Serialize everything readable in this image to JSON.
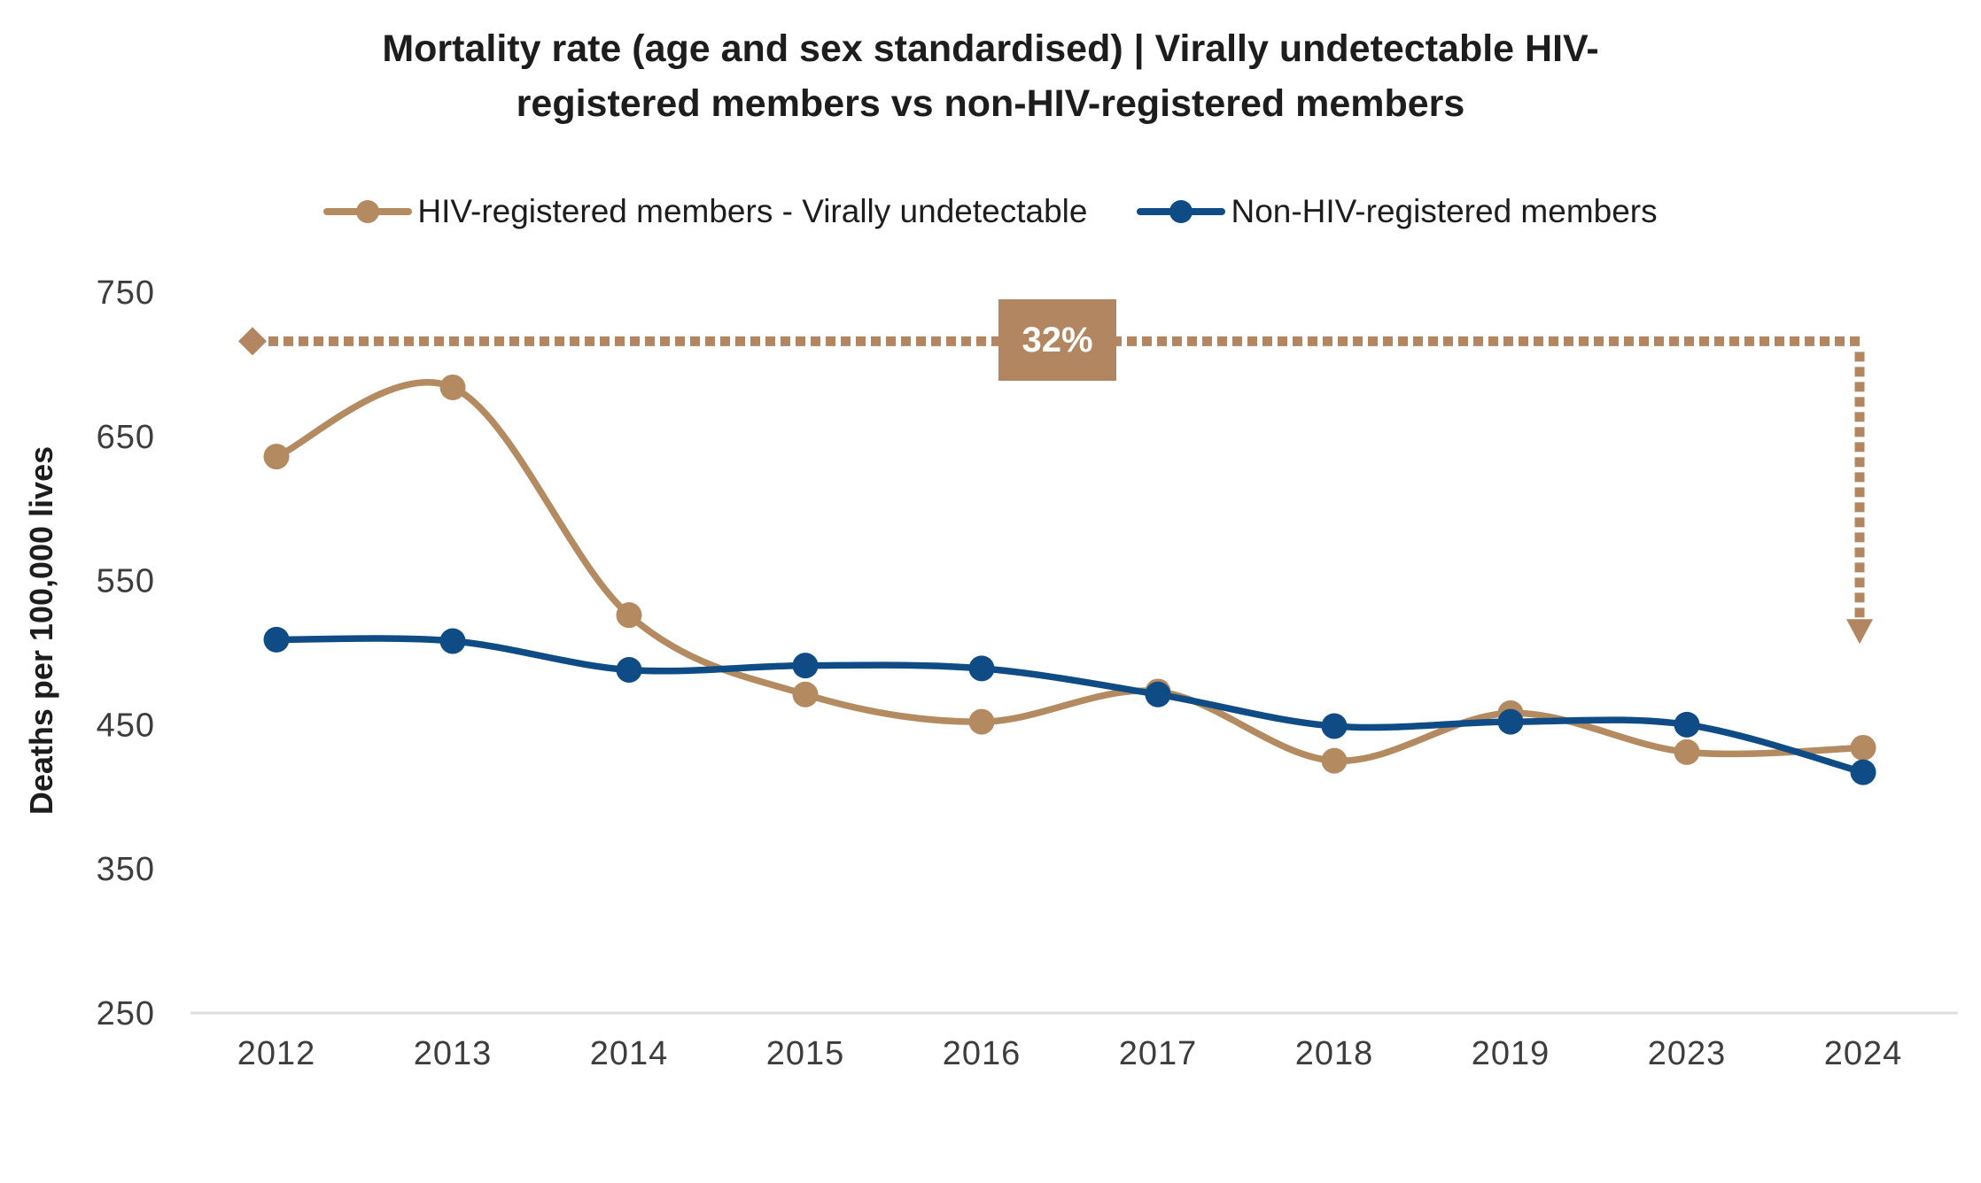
{
  "chart_data": {
    "type": "line",
    "title": "Mortality rate (age and sex standardised) | Virally undetectable HIV-registered members vs non-HIV-registered members",
    "title_lines": [
      "Mortality rate (age and sex standardised) | Virally undetectable HIV-",
      "registered members vs non-HIV-registered members"
    ],
    "ylabel": "Deaths per 100,000 lives",
    "xlabel": "",
    "categories": [
      "2012",
      "2013",
      "2014",
      "2015",
      "2016",
      "2017",
      "2018",
      "2019",
      "2023",
      "2024"
    ],
    "ylim": [
      250,
      750
    ],
    "yticks": [
      250,
      350,
      450,
      550,
      650,
      750
    ],
    "grid": false,
    "legend_position": "top",
    "line_style": "smooth",
    "marker": "circle",
    "series": [
      {
        "name": "HIV-registered members - Virally undetectable",
        "color": "#B48B60",
        "values": [
          636,
          684,
          526,
          471,
          452,
          473,
          425,
          458,
          431,
          434
        ]
      },
      {
        "name": "Non-HIV-registered members",
        "color": "#0F4C85",
        "values": [
          509,
          508,
          488,
          491,
          489,
          471,
          449,
          452,
          450,
          417
        ]
      }
    ],
    "annotation": {
      "label": "32%",
      "box_color": "#B18660",
      "style": "dotted-line-with-diamond-start-and-arrow-end",
      "line_value": 716,
      "arrow_end_value": 506
    }
  },
  "colors": {
    "axis_line": "#DEDEDE",
    "tick_text": "#3D3D3D",
    "title_text": "#1D1D1D"
  }
}
